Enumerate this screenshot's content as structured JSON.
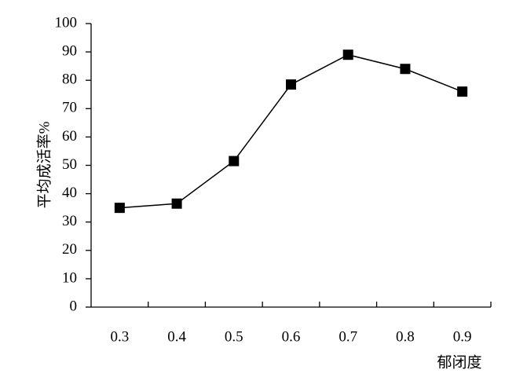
{
  "chart_data": {
    "type": "line",
    "x_label": "郁闭度",
    "y_label": "平均成活率%",
    "categories": [
      "0.3",
      "0.4",
      "0.5",
      "0.6",
      "0.7",
      "0.8",
      "0.9"
    ],
    "series": [
      {
        "name": "平均成活率",
        "color": "#000000",
        "values": [
          35,
          36.5,
          51.5,
          78.5,
          89,
          84,
          76
        ]
      }
    ],
    "ylim": [
      0,
      100
    ],
    "yticks": [
      0,
      10,
      20,
      30,
      40,
      50,
      60,
      70,
      80,
      90,
      100
    ]
  }
}
